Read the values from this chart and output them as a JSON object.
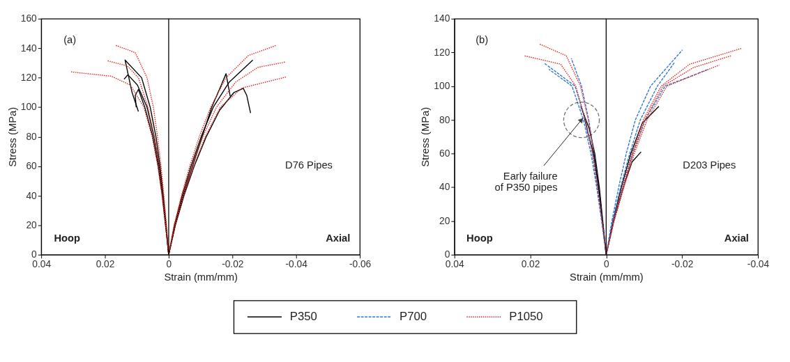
{
  "chart_data": [
    {
      "type": "line",
      "xlabel": "Strain (mm/mm)",
      "ylabel": "Stress (MPa)",
      "xlim": [
        0.04,
        -0.06
      ],
      "xticks": [
        0.04,
        0.02,
        0,
        -0.02,
        -0.04,
        -0.06
      ],
      "ylim": [
        0,
        160
      ],
      "yticks": [
        0,
        20,
        40,
        60,
        80,
        100,
        120,
        140,
        160
      ],
      "grid": false,
      "annotations": [
        "(a)",
        "Hoop",
        "Axial",
        "D76 Pipes"
      ],
      "ref_lines": [
        {
          "axis": "x",
          "value": 0,
          "color": "#000000"
        }
      ],
      "series": [
        {
          "color": "#000000",
          "line_style": "solid",
          "x": [
            0,
            0.0008,
            0.0017,
            0.0027,
            0.004,
            0.0058,
            0.0085,
            0.0137,
            0.0115,
            0.0095
          ],
          "values": [
            0,
            20,
            40,
            60,
            80,
            100,
            120,
            132,
            110,
            97
          ]
        },
        {
          "color": "#000000",
          "line_style": "solid",
          "x": [
            0,
            0.0009,
            0.0019,
            0.003,
            0.0046,
            0.0068,
            0.0098,
            0.0128,
            0.014
          ],
          "values": [
            0,
            20,
            40,
            60,
            80,
            100,
            115,
            122,
            119
          ]
        },
        {
          "color": "#000000",
          "line_style": "solid",
          "x": [
            0,
            0.001,
            0.002,
            0.0033,
            0.005,
            0.0075,
            0.0095,
            0.0105,
            0.0102
          ],
          "values": [
            0,
            20,
            40,
            60,
            80,
            100,
            112,
            108,
            100
          ]
        },
        {
          "color": "#e0201b",
          "line_style": "dotted",
          "x": [
            0,
            0.0007,
            0.0015,
            0.0024,
            0.0035,
            0.0048,
            0.0068,
            0.0105,
            0.0167
          ],
          "values": [
            0,
            20,
            40,
            60,
            80,
            100,
            120,
            137,
            142
          ]
        },
        {
          "color": "#e0201b",
          "line_style": "dotted",
          "x": [
            0,
            0.0009,
            0.0019,
            0.003,
            0.0045,
            0.0065,
            0.0095,
            0.013,
            0.0193
          ],
          "values": [
            0,
            20,
            40,
            60,
            80,
            100,
            120,
            128,
            131.5
          ]
        },
        {
          "color": "#e0201b",
          "line_style": "dotted",
          "x": [
            0,
            0.001,
            0.0021,
            0.0034,
            0.0052,
            0.0078,
            0.012,
            0.018,
            0.0309
          ],
          "values": [
            0,
            20,
            40,
            60,
            80,
            100,
            115,
            121,
            124
          ]
        },
        {
          "color": "#000000",
          "line_style": "solid",
          "x": [
            0,
            -0.0018,
            -0.0042,
            -0.007,
            -0.0102,
            -0.014,
            -0.019,
            -0.0264
          ],
          "values": [
            0,
            20,
            40,
            60,
            80,
            100,
            117,
            132
          ]
        },
        {
          "color": "#000000",
          "line_style": "solid",
          "x": [
            0,
            -0.002,
            -0.0045,
            -0.0075,
            -0.0105,
            -0.0135,
            -0.0165,
            -0.018,
            -0.0193
          ],
          "values": [
            0,
            20,
            40,
            60,
            80,
            100,
            115,
            122.7,
            107.5
          ]
        },
        {
          "color": "#000000",
          "line_style": "solid",
          "x": [
            0,
            -0.0021,
            -0.0048,
            -0.008,
            -0.0118,
            -0.016,
            -0.0205,
            -0.0234,
            -0.0245,
            -0.0257
          ],
          "values": [
            0,
            20,
            40,
            60,
            80,
            98,
            110,
            112.8,
            108,
            96
          ]
        },
        {
          "color": "#e0201b",
          "line_style": "dotted",
          "x": [
            0,
            -0.0017,
            -0.004,
            -0.0066,
            -0.0096,
            -0.0132,
            -0.018,
            -0.025,
            -0.0336
          ],
          "values": [
            0,
            20,
            40,
            60,
            80,
            100,
            120,
            135,
            141.8
          ]
        },
        {
          "color": "#e0201b",
          "line_style": "dotted",
          "x": [
            0,
            -0.0019,
            -0.0044,
            -0.0073,
            -0.0107,
            -0.015,
            -0.021,
            -0.028,
            -0.0366
          ],
          "values": [
            0,
            20,
            40,
            60,
            80,
            100,
            117,
            127,
            130.6
          ]
        },
        {
          "color": "#e0201b",
          "line_style": "dotted",
          "x": [
            0,
            -0.002,
            -0.0047,
            -0.0078,
            -0.0115,
            -0.0162,
            -0.023,
            -0.0369
          ],
          "values": [
            0,
            20,
            40,
            60,
            80,
            100,
            113,
            120.5
          ]
        }
      ]
    },
    {
      "type": "line",
      "xlabel": "Strain (mm/mm)",
      "ylabel": "Stress (MPa)",
      "xlim": [
        0.04,
        -0.04
      ],
      "xticks": [
        0.04,
        0.02,
        0,
        -0.02,
        -0.04
      ],
      "ylim": [
        0,
        140
      ],
      "yticks": [
        0,
        20,
        40,
        60,
        80,
        100,
        120,
        140
      ],
      "grid": false,
      "legend": "bottom",
      "annotations": [
        "(b)",
        "Hoop",
        "Axial",
        "D203 Pipes",
        {
          "text": "Early failure\nof P350 pipes",
          "x": 0.0065,
          "y": 80
        }
      ],
      "ref_lines": [
        {
          "axis": "x",
          "value": 0,
          "color": "#000000"
        }
      ],
      "series": [
        {
          "name": "P350",
          "color": "#000000",
          "line_style": "solid",
          "x": [
            0,
            0.0009,
            0.0018,
            0.003,
            0.0045,
            0.0067
          ],
          "values": [
            0,
            20,
            40,
            60,
            75,
            88
          ]
        },
        {
          "name": "P700",
          "color": "#2e75d0",
          "line_style": "dashed",
          "x": [
            0,
            0.001,
            0.002,
            0.0032,
            0.0046,
            0.0065,
            0.0092
          ],
          "values": [
            0,
            20,
            40,
            60,
            80,
            100,
            116.5
          ]
        },
        {
          "name": "P1050",
          "color": "#e0201b",
          "line_style": "dotted",
          "x": [
            0,
            0.001,
            0.002,
            0.0032,
            0.0047,
            0.0068,
            0.0105,
            0.0176
          ],
          "values": [
            0,
            20,
            40,
            60,
            80,
            100,
            118,
            125
          ]
        },
        {
          "color": "#000000",
          "line_style": "solid",
          "x": [
            0,
            0.001,
            0.002,
            0.0033,
            0.0048,
            0.006
          ],
          "values": [
            0,
            20,
            40,
            60,
            72,
            84
          ]
        },
        {
          "color": "#2e75d0",
          "line_style": "dashed",
          "x": [
            0,
            0.0011,
            0.0023,
            0.0036,
            0.0055,
            0.0082,
            0.0163
          ],
          "values": [
            0,
            20,
            40,
            60,
            80,
            100,
            113.6
          ]
        },
        {
          "color": "#2e75d0",
          "line_style": "dashed",
          "x": [
            0,
            0.0012,
            0.0025,
            0.004,
            0.006,
            0.009,
            0.0151
          ],
          "values": [
            0,
            20,
            40,
            60,
            80,
            100,
            110
          ]
        },
        {
          "color": "#e0201b",
          "line_style": "dotted",
          "x": [
            0,
            0.0011,
            0.0023,
            0.0036,
            0.0055,
            0.008,
            0.012,
            0.0216
          ],
          "values": [
            0,
            20,
            40,
            60,
            80,
            100,
            113,
            118
          ]
        },
        {
          "color": "#000000",
          "line_style": "solid",
          "x": [
            0,
            -0.0018,
            -0.004,
            -0.0065,
            -0.0095,
            -0.0139
          ],
          "values": [
            0,
            20,
            40,
            60,
            78,
            88
          ]
        },
        {
          "color": "#000000",
          "line_style": "solid",
          "x": [
            0,
            -0.002,
            -0.0045,
            -0.0068,
            -0.0092
          ],
          "values": [
            0,
            20,
            40,
            55,
            61
          ]
        },
        {
          "color": "#2e75d0",
          "line_style": "dashed",
          "x": [
            0,
            -0.0015,
            -0.0033,
            -0.0053,
            -0.0077,
            -0.0117,
            -0.0201
          ],
          "values": [
            0,
            20,
            40,
            60,
            80,
            100,
            121.5
          ]
        },
        {
          "color": "#2e75d0",
          "line_style": "dashed",
          "x": [
            0,
            -0.0017,
            -0.0038,
            -0.0062,
            -0.009,
            -0.0135,
            -0.018
          ],
          "values": [
            0,
            20,
            40,
            60,
            80,
            100,
            114
          ]
        },
        {
          "color": "#2e75d0",
          "line_style": "dashed",
          "x": [
            0,
            -0.002,
            -0.0045,
            -0.007,
            -0.0103,
            -0.0155,
            -0.027
          ],
          "values": [
            0,
            20,
            40,
            60,
            80,
            100,
            110
          ]
        },
        {
          "color": "#e0201b",
          "line_style": "dotted",
          "x": [
            0,
            -0.0019,
            -0.0043,
            -0.0068,
            -0.0098,
            -0.0145,
            -0.022,
            -0.0357
          ],
          "values": [
            0,
            20,
            40,
            60,
            80,
            100,
            113,
            122.4
          ]
        },
        {
          "color": "#e0201b",
          "line_style": "dotted",
          "x": [
            0,
            -0.002,
            -0.0045,
            -0.0071,
            -0.0102,
            -0.015,
            -0.023,
            -0.0329
          ],
          "values": [
            0,
            20,
            40,
            60,
            80,
            100,
            111,
            118
          ]
        },
        {
          "color": "#e0201b",
          "line_style": "dotted",
          "x": [
            0,
            -0.0021,
            -0.0047,
            -0.0074,
            -0.0108,
            -0.016,
            -0.0298
          ],
          "values": [
            0,
            20,
            40,
            60,
            80,
            100,
            112.5
          ]
        }
      ]
    }
  ]
}
